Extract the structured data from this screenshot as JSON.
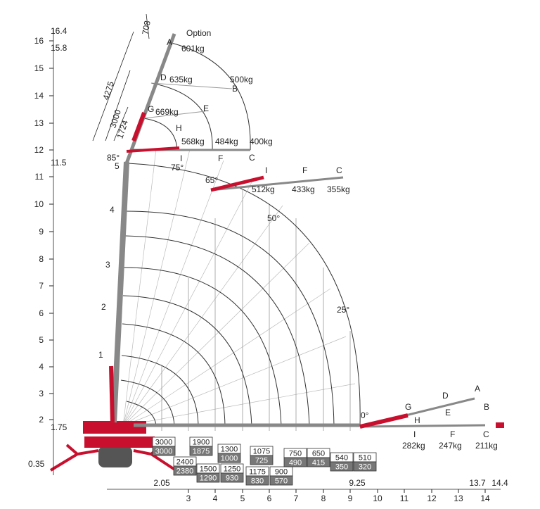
{
  "colors": {
    "accent": "#c8102e",
    "boom": "#888888",
    "capacity_box_dark": "#777777",
    "capacity_box_light": "#ffffff"
  },
  "y_axis": {
    "ticks": [
      "2",
      "3",
      "4",
      "5",
      "6",
      "7",
      "8",
      "9",
      "10",
      "11",
      "12",
      "13",
      "14",
      "15",
      "16"
    ],
    "special": [
      "16.4",
      "15.8",
      "11.5",
      "1.75",
      "0.35"
    ]
  },
  "x_axis": {
    "ticks": [
      "3",
      "4",
      "5",
      "6",
      "7",
      "8",
      "9",
      "10",
      "11",
      "12",
      "13",
      "14"
    ],
    "special": [
      "2.05",
      "9.25",
      "13.7",
      "14.4"
    ]
  },
  "boom_points": [
    "A",
    "B",
    "C",
    "D",
    "E",
    "F",
    "G",
    "H",
    "I",
    "1",
    "2",
    "3",
    "4",
    "5"
  ],
  "angles": [
    "85°",
    "75°",
    "65°",
    "50°",
    "25°",
    "0°"
  ],
  "dimensions": [
    "708",
    "4275",
    "3000",
    "1724"
  ],
  "option_label": "Option",
  "fly_jib_upper_capacities": [
    "601kg",
    "635kg",
    "500kg",
    "669kg",
    "568kg",
    "484kg",
    "400kg"
  ],
  "fly_jib_mid_capacities": [
    "512kg",
    "433kg",
    "355kg"
  ],
  "fly_jib_lower_capacities": [
    "282kg",
    "247kg",
    "211kg"
  ],
  "capacity_tables": [
    {
      "top": "3000",
      "bottom": "3000"
    },
    {
      "top": "2400",
      "bottom": "2380"
    },
    {
      "top": "1900",
      "bottom": "1875"
    },
    {
      "top": "1500",
      "bottom": "1290"
    },
    {
      "top": "1300",
      "bottom": "1000"
    },
    {
      "top": "1250",
      "bottom": "930"
    },
    {
      "top": "1075",
      "bottom": "725"
    },
    {
      "top": "1175",
      "bottom": "830"
    },
    {
      "top": "900",
      "bottom": "570"
    },
    {
      "top": "750",
      "bottom": "490"
    },
    {
      "top": "650",
      "bottom": "415"
    },
    {
      "top": "540",
      "bottom": "350"
    },
    {
      "top": "510",
      "bottom": "320"
    }
  ]
}
